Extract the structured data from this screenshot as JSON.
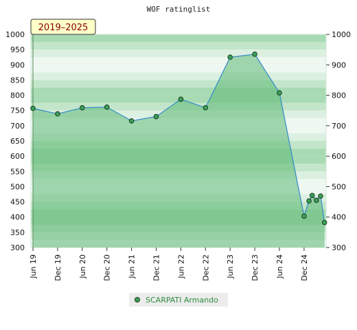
{
  "chart_data": {
    "type": "line",
    "title": "WOF ratinglist",
    "period_label": "2019–2025",
    "ylim": [
      300,
      1000
    ],
    "yticks": [
      300,
      350,
      400,
      450,
      500,
      550,
      600,
      650,
      700,
      750,
      800,
      850,
      900,
      950,
      1000
    ],
    "yticks_right": [
      300,
      400,
      500,
      600,
      700,
      800,
      900,
      1000
    ],
    "xticks": [
      "Jun 19",
      "Dec 19",
      "Jun 20",
      "Dec 20",
      "Jun 21",
      "Dec 21",
      "Jun 22",
      "Dec 22",
      "Jun 23",
      "Dec 23",
      "Jun 24",
      "Dec 24"
    ],
    "series": [
      {
        "name": "SCARPATI Armando",
        "x": [
          0,
          1,
          2,
          3,
          4,
          5,
          6,
          7,
          8,
          9,
          10,
          11,
          11.2,
          11.33,
          11.5,
          11.67,
          11.83
        ],
        "values": [
          757,
          739,
          759,
          761,
          716,
          730,
          787,
          759,
          925,
          935,
          808,
          403,
          453,
          471,
          455,
          469,
          382
        ],
        "line_color": "#3a8fc8",
        "fill_color": "#5cb874",
        "marker_color": "#3aa05a"
      }
    ],
    "grid": true,
    "legend": "bottom-center"
  }
}
